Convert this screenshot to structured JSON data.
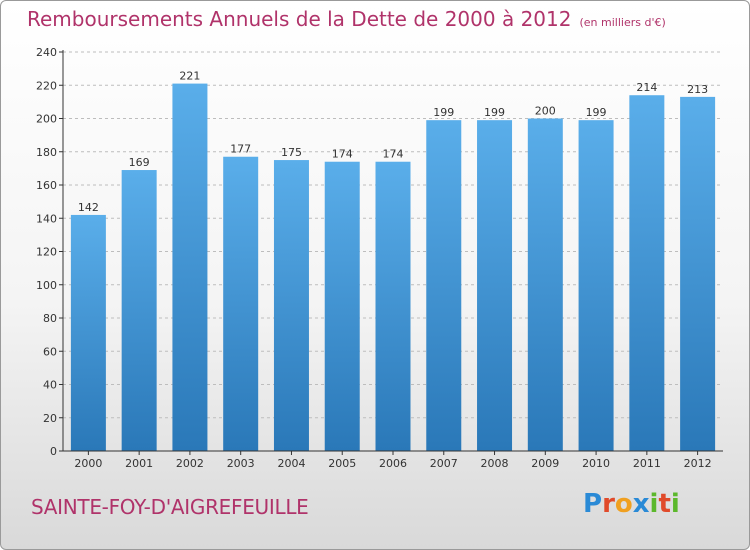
{
  "header": {
    "title": "Remboursements Annuels de la Dette de 2000 à 2012",
    "subtitle": "(en milliers d'€)"
  },
  "footer": {
    "commune": "SAINTE-FOY-D'AIGREFEUILLE",
    "logo_letters": [
      "P",
      "r",
      "o",
      "x",
      "i",
      "t",
      "i"
    ],
    "logo_colors": [
      "#2a8ad6",
      "#e04a2a",
      "#f0a020",
      "#2a8ad6",
      "#5cb82c",
      "#e04a2a",
      "#5cb82c"
    ]
  },
  "colors": {
    "bar_light": "#5aaeea",
    "bar_dark": "#2a78b8",
    "grid": "#bdbdbd",
    "axis": "#333333",
    "title": "#b0336a"
  },
  "chart_data": {
    "type": "bar",
    "title": "Remboursements Annuels de la Dette de 2000 à 2012",
    "xlabel": "",
    "ylabel": "",
    "categories": [
      "2000",
      "2001",
      "2002",
      "2003",
      "2004",
      "2005",
      "2006",
      "2007",
      "2008",
      "2009",
      "2010",
      "2011",
      "2012"
    ],
    "values": [
      142,
      169,
      221,
      177,
      175,
      174,
      174,
      199,
      199,
      200,
      199,
      214,
      213
    ],
    "ylim": [
      0,
      240
    ],
    "yticks": [
      0,
      20,
      40,
      60,
      80,
      100,
      120,
      140,
      160,
      180,
      200,
      220,
      240
    ],
    "grid": true
  }
}
